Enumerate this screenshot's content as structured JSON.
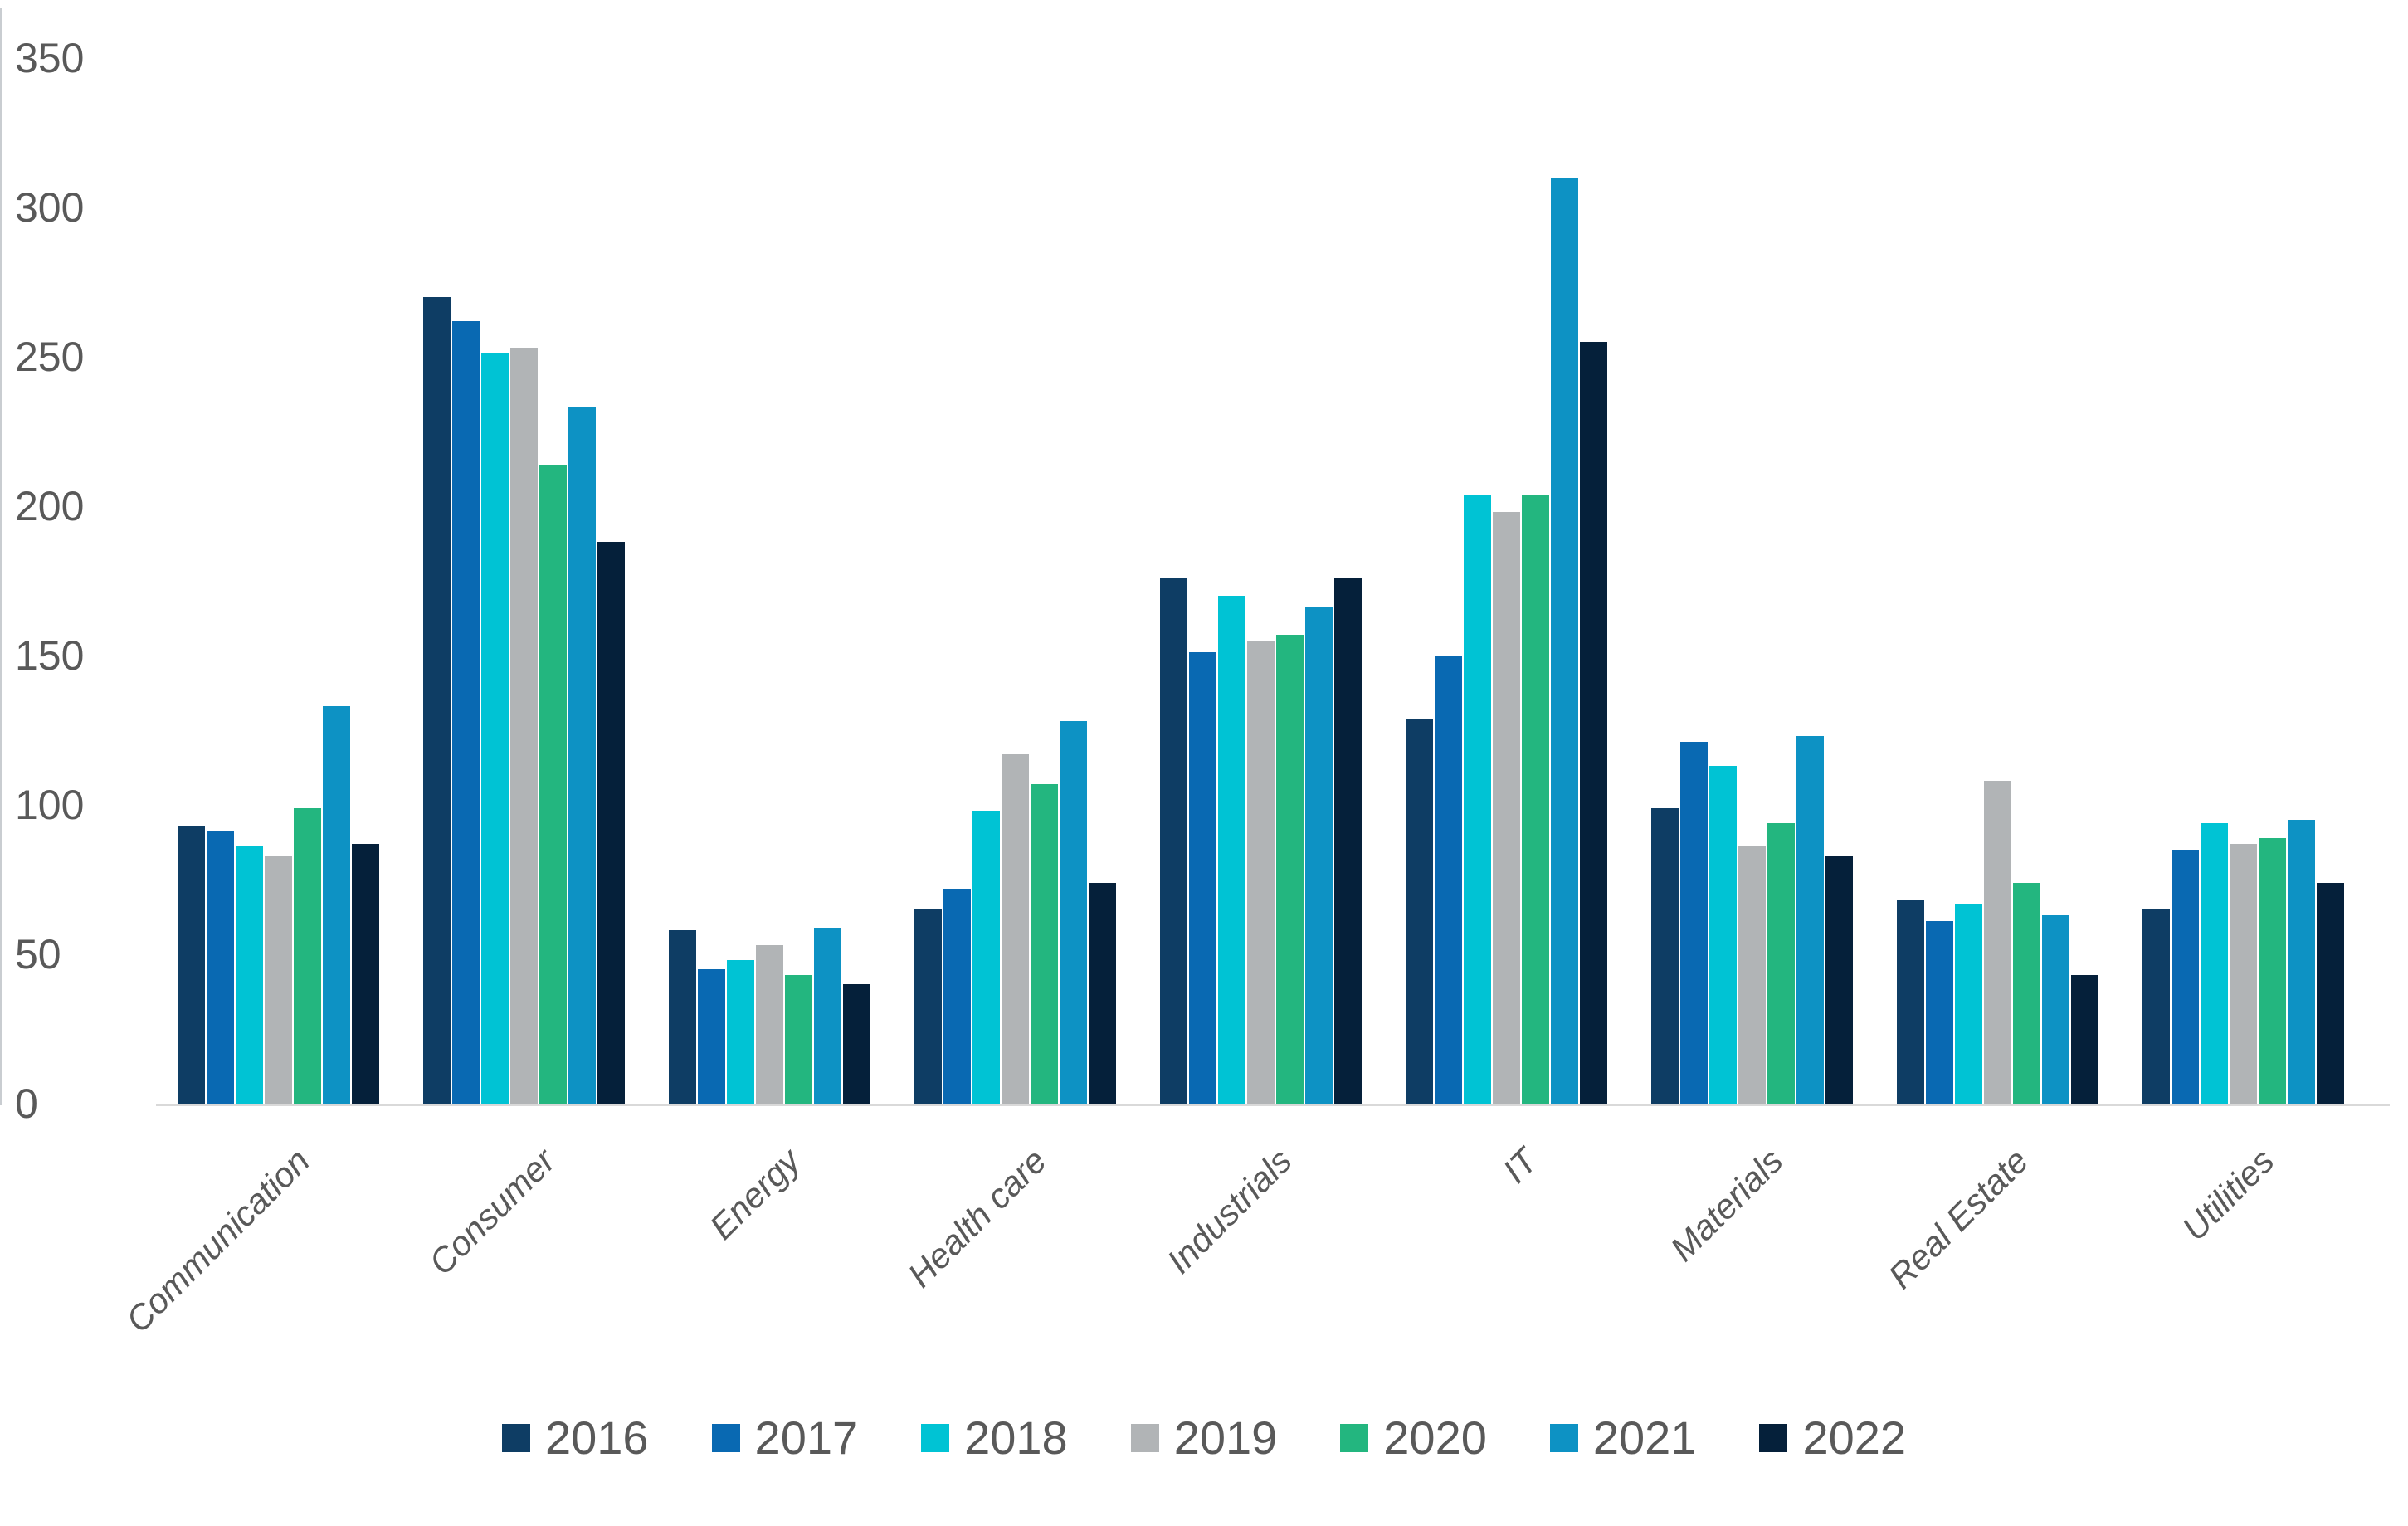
{
  "chart_data": {
    "type": "bar",
    "title": "",
    "xlabel": "",
    "ylabel": "",
    "ylim": [
      0,
      350
    ],
    "yticks": [
      0,
      50,
      100,
      150,
      200,
      250,
      300,
      350
    ],
    "grid": false,
    "legend_position": "bottom",
    "axis_text_color": "#595959",
    "axis_line_color": "#d9d9d9",
    "categories": [
      "Communication",
      "Consumer",
      "Energy",
      "Health care",
      "Industrials",
      "IT",
      "Materials",
      "Real Estate",
      "Utilities"
    ],
    "series": [
      {
        "name": "2016",
        "color": "#0e3d64",
        "values": [
          93,
          270,
          58,
          65,
          176,
          129,
          99,
          68,
          65
        ]
      },
      {
        "name": "2017",
        "color": "#0969b2",
        "values": [
          91,
          262,
          45,
          72,
          151,
          150,
          121,
          61,
          85
        ]
      },
      {
        "name": "2018",
        "color": "#00c3d4",
        "values": [
          86,
          251,
          48,
          98,
          170,
          204,
          113,
          67,
          94
        ]
      },
      {
        "name": "2019",
        "color": "#b1b4b6",
        "values": [
          83,
          253,
          53,
          117,
          155,
          198,
          86,
          108,
          87
        ]
      },
      {
        "name": "2020",
        "color": "#23b67f",
        "values": [
          99,
          214,
          43,
          107,
          157,
          204,
          94,
          74,
          89
        ]
      },
      {
        "name": "2021",
        "color": "#0d92c4",
        "values": [
          133,
          233,
          59,
          128,
          166,
          310,
          123,
          63,
          95
        ]
      },
      {
        "name": "2022",
        "color": "#05203a",
        "values": [
          87,
          188,
          40,
          74,
          176,
          255,
          83,
          43,
          74
        ]
      }
    ]
  }
}
